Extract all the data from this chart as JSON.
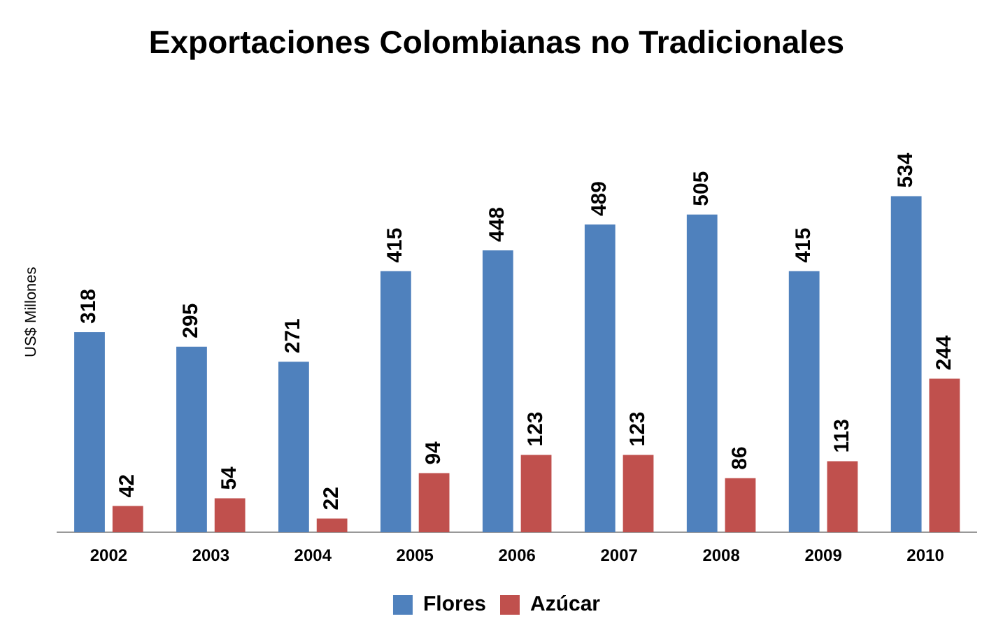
{
  "chart_data": {
    "type": "bar",
    "title": "Exportaciones Colombianas no Tradicionales",
    "ylabel": "US$ Millones",
    "categories": [
      "2002",
      "2003",
      "2004",
      "2005",
      "2006",
      "2007",
      "2008",
      "2009",
      "2010"
    ],
    "series": [
      {
        "name": "Flores",
        "color": "#4f81bd",
        "values": [
          318,
          295,
          271,
          415,
          448,
          489,
          505,
          415,
          534
        ]
      },
      {
        "name": "Azúcar",
        "color": "#c0504d",
        "values": [
          42,
          54,
          22,
          94,
          123,
          123,
          86,
          113,
          244
        ]
      }
    ],
    "data_labels": true,
    "legend": "bottom",
    "grid": false
  }
}
